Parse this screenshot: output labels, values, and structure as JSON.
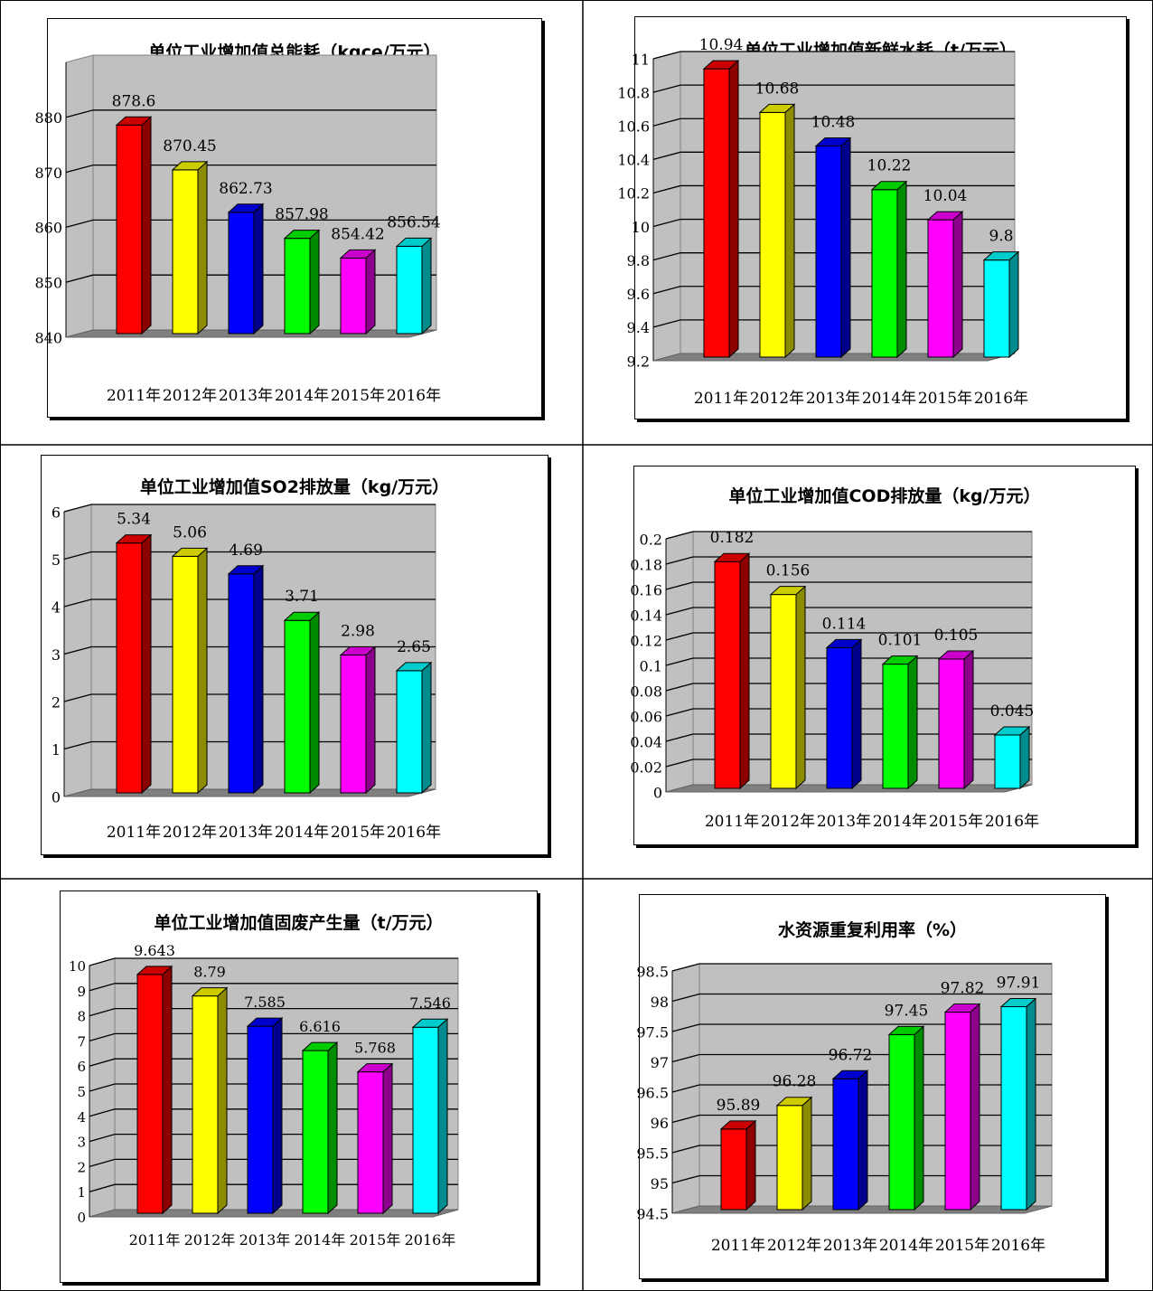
{
  "chart_data": [
    {
      "type": "bar",
      "title": "单位工业增加值总能耗（kgce/万元）",
      "categories": [
        "2011年",
        "2012年",
        "2013年",
        "2014年",
        "2015年",
        "2016年"
      ],
      "values": [
        878.6,
        870.45,
        862.73,
        857.98,
        854.42,
        856.54
      ],
      "value_labels": [
        "878.6",
        "870.45",
        "862.73",
        "857.98",
        "854.42",
        "856.54"
      ],
      "ylim": [
        840,
        890
      ],
      "ticks": [
        840,
        850,
        860,
        870,
        880
      ],
      "tick_labels": [
        "840",
        "850",
        "860",
        "870",
        "880"
      ],
      "grid": true,
      "colors": [
        "#ff0000",
        "#ffff00",
        "#0000ff",
        "#00ff00",
        "#ff00ff",
        "#00ffff"
      ]
    },
    {
      "type": "bar",
      "title": "单位工业增加值新鲜水耗（t/万元）",
      "categories": [
        "2011年",
        "2012年",
        "2013年",
        "2014年",
        "2015年",
        "2016年"
      ],
      "values": [
        10.94,
        10.68,
        10.48,
        10.22,
        10.04,
        9.8
      ],
      "value_labels": [
        "10.94",
        "10.68",
        "10.48",
        "10.22",
        "10.04",
        "9.8"
      ],
      "ylim": [
        9.2,
        11
      ],
      "ticks": [
        9.2,
        9.4,
        9.6,
        9.8,
        10,
        10.2,
        10.4,
        10.6,
        10.8,
        11
      ],
      "tick_labels": [
        "9.2",
        "9.4",
        "9.6",
        "9.8",
        "10",
        "10.2",
        "10.4",
        "10.6",
        "10.8",
        "11"
      ],
      "grid": true,
      "colors": [
        "#ff0000",
        "#ffff00",
        "#0000ff",
        "#00ff00",
        "#ff00ff",
        "#00ffff"
      ]
    },
    {
      "type": "bar",
      "title": "单位工业增加值SO2排放量（kg/万元）",
      "categories": [
        "2011年",
        "2012年",
        "2013年",
        "2014年",
        "2015年",
        "2016年"
      ],
      "values": [
        5.34,
        5.06,
        4.69,
        3.71,
        2.98,
        2.65
      ],
      "value_labels": [
        "5.34",
        "5.06",
        "4.69",
        "3.71",
        "2.98",
        "2.65"
      ],
      "ylim": [
        0,
        6
      ],
      "ticks": [
        0,
        1,
        2,
        3,
        4,
        5,
        6
      ],
      "tick_labels": [
        "0",
        "1",
        "2",
        "3",
        "4",
        "5",
        "6"
      ],
      "grid": true,
      "colors": [
        "#ff0000",
        "#ffff00",
        "#0000ff",
        "#00ff00",
        "#ff00ff",
        "#00ffff"
      ]
    },
    {
      "type": "bar",
      "title": "单位工业增加值COD排放量（kg/万元）",
      "categories": [
        "2011年",
        "2012年",
        "2013年",
        "2014年",
        "2015年",
        "2016年"
      ],
      "values": [
        0.182,
        0.156,
        0.114,
        0.101,
        0.105,
        0.045
      ],
      "value_labels": [
        "0.182",
        "0.156",
        "0.114",
        "0.101",
        "0.105",
        "0.045"
      ],
      "ylim": [
        0,
        0.2
      ],
      "ticks": [
        0,
        0.02,
        0.04,
        0.06,
        0.08,
        0.1,
        0.12,
        0.14,
        0.16,
        0.18,
        0.2
      ],
      "tick_labels": [
        "0",
        "0.02",
        "0.04",
        "0.06",
        "0.08",
        "0.1",
        "0.12",
        "0.14",
        "0.16",
        "0.18",
        "0.2"
      ],
      "grid": true,
      "colors": [
        "#ff0000",
        "#ffff00",
        "#0000ff",
        "#00ff00",
        "#ff00ff",
        "#00ffff"
      ]
    },
    {
      "type": "bar",
      "title": "单位工业增加值固废产生量（t/万元）",
      "categories": [
        "2011年",
        "2012年",
        "2013年",
        "2014年",
        "2015年",
        "2016年"
      ],
      "values": [
        9.643,
        8.79,
        7.585,
        6.616,
        5.768,
        7.546
      ],
      "value_labels": [
        "9.643",
        "8.79",
        "7.585",
        "6.616",
        "5.768",
        "7.546"
      ],
      "ylim": [
        0,
        10
      ],
      "ticks": [
        0,
        1,
        2,
        3,
        4,
        5,
        6,
        7,
        8,
        9,
        10
      ],
      "tick_labels": [
        "0",
        "1",
        "2",
        "3",
        "4",
        "5",
        "6",
        "7",
        "8",
        "9",
        "10"
      ],
      "grid": true,
      "colors": [
        "#ff0000",
        "#ffff00",
        "#0000ff",
        "#00ff00",
        "#ff00ff",
        "#00ffff"
      ]
    },
    {
      "type": "bar",
      "title": "水资源重复利用率（%）",
      "categories": [
        "2011年",
        "2012年",
        "2013年",
        "2014年",
        "2015年",
        "2016年"
      ],
      "values": [
        95.89,
        96.28,
        96.72,
        97.45,
        97.82,
        97.91
      ],
      "value_labels": [
        "95.89",
        "96.28",
        "96.72",
        "97.45",
        "97.82",
        "97.91"
      ],
      "ylim": [
        94.5,
        98.5
      ],
      "ticks": [
        94.5,
        95,
        95.5,
        96,
        96.5,
        97,
        97.5,
        98,
        98.5
      ],
      "tick_labels": [
        "94.5",
        "95",
        "95.5",
        "96",
        "96.5",
        "97",
        "97.5",
        "98",
        "98.5"
      ],
      "grid": true,
      "colors": [
        "#ff0000",
        "#ffff00",
        "#0000ff",
        "#00ff00",
        "#ff00ff",
        "#00ffff"
      ]
    }
  ]
}
